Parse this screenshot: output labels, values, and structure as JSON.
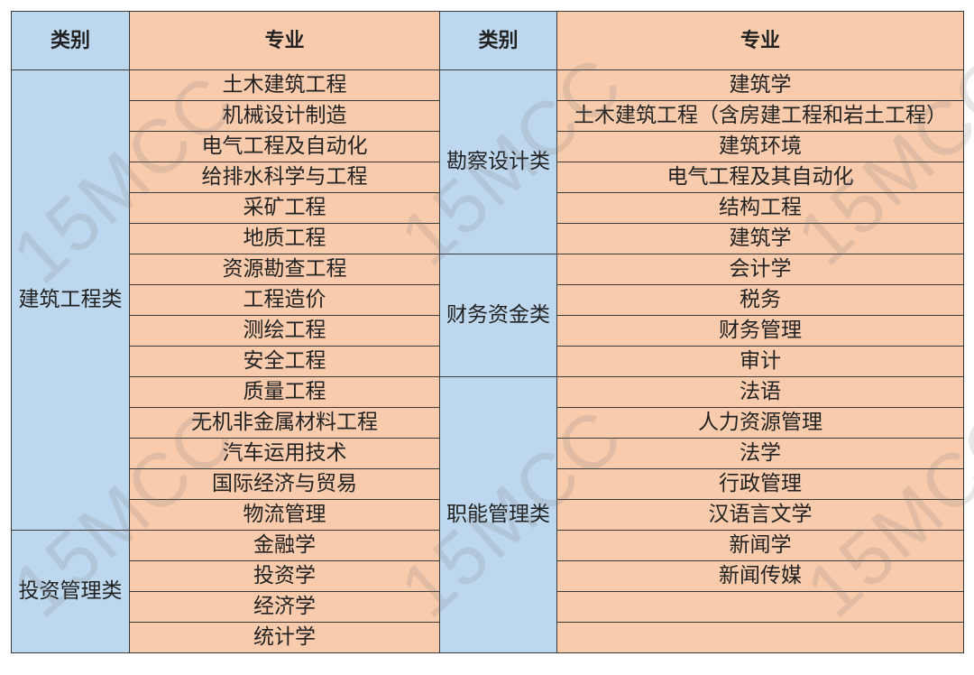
{
  "headers": {
    "category": "类别",
    "major": "专业"
  },
  "left": {
    "groups": [
      {
        "category": "建筑工程类",
        "majors": [
          "土木建筑工程",
          "机械设计制造",
          "电气工程及自动化",
          "给排水科学与工程",
          "采矿工程",
          "地质工程",
          "资源勘查工程",
          "工程造价",
          "测绘工程",
          "安全工程",
          "质量工程",
          "无机非金属材料工程",
          "汽车运用技术",
          "国际经济与贸易",
          "物流管理"
        ]
      },
      {
        "category": "投资管理类",
        "majors": [
          "金融学",
          "投资学",
          "经济学",
          "统计学"
        ]
      }
    ]
  },
  "right": {
    "groups": [
      {
        "category": "勘察设计类",
        "majors": [
          "建筑学",
          "土木建筑工程（含房建工程和岩土工程）",
          "建筑环境",
          "电气工程及其自动化",
          "结构工程",
          "建筑学"
        ]
      },
      {
        "category": "财务资金类",
        "majors": [
          "会计学",
          "税务",
          "财务管理",
          "审计"
        ]
      },
      {
        "category": "职能管理类",
        "majors": [
          "法语",
          "人力资源管理",
          "法学",
          "行政管理",
          "汉语言文学",
          "新闻学",
          "新闻传媒",
          "",
          ""
        ]
      }
    ]
  },
  "watermark": "15MCC",
  "colors": {
    "category_bg": "#bdd7ee",
    "major_bg": "#f8cbad",
    "border": "#3a3a3a"
  }
}
